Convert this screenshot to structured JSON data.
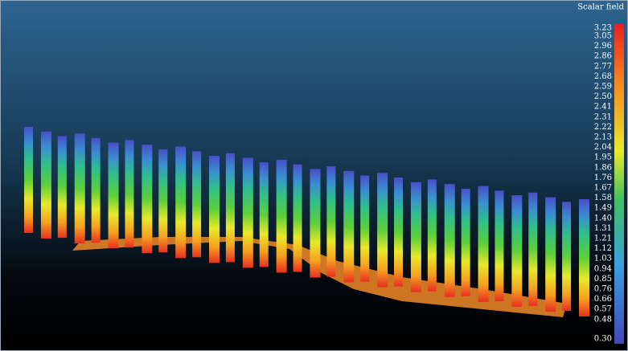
{
  "scalar_bar": {
    "title": "Scalar field",
    "labels": [
      "3.23",
      "3.05",
      "2.96",
      "2.86",
      "2.77",
      "2.68",
      "2.59",
      "2.50",
      "2.41",
      "2.31",
      "2.22",
      "2.13",
      "2.04",
      "1.95",
      "1.86",
      "1.76",
      "1.67",
      "1.58",
      "1.49",
      "1.40",
      "1.31",
      "1.21",
      "1.12",
      "1.03",
      "0.94",
      "0.85",
      "0.76",
      "0.66",
      "0.57",
      "0.48",
      "0.30"
    ]
  }
}
